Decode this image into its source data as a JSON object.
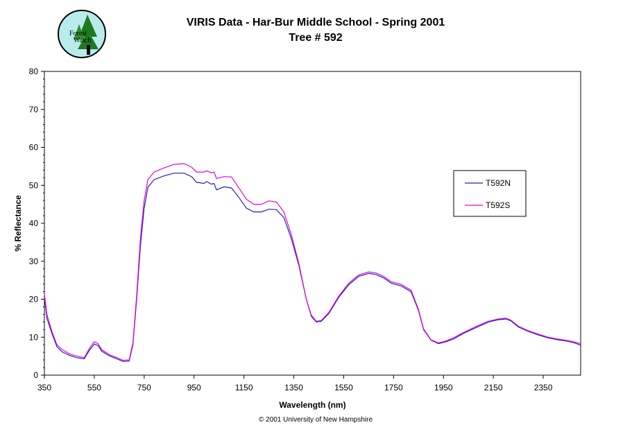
{
  "header": {
    "logo_text_line1": "Forest",
    "logo_text_line2": "Watch",
    "title": "VIRIS Data - Har-Bur Middle School - Spring 2001",
    "subtitle": "Tree # 592"
  },
  "footer": {
    "copyright": "© 2001 University of New Hampshire"
  },
  "colors": {
    "series_n": "#1f1fbf",
    "series_s": "#e000e0",
    "logo_bg": "#b8ecec",
    "logo_tree": "#1f7a1f"
  },
  "chart_data": {
    "type": "line",
    "title": "VIRIS Data - Har-Bur Middle School - Spring 2001",
    "subtitle": "Tree # 592",
    "xlabel": "Wavelength (nm)",
    "ylabel": "% Reflectance",
    "xlim": [
      350,
      2500
    ],
    "ylim": [
      0,
      80
    ],
    "x_ticks": [
      350,
      550,
      750,
      950,
      1150,
      1350,
      1550,
      1750,
      1950,
      2150,
      2350
    ],
    "y_ticks": [
      0,
      10,
      20,
      30,
      40,
      50,
      60,
      70,
      80
    ],
    "grid": false,
    "legend_position": "right",
    "series": [
      {
        "name": "T592N",
        "color": "#1f1fbf",
        "points": [
          [
            350,
            20.5
          ],
          [
            360,
            15
          ],
          [
            380,
            11
          ],
          [
            400,
            7.5
          ],
          [
            420,
            6.2
          ],
          [
            450,
            5.2
          ],
          [
            480,
            4.6
          ],
          [
            510,
            4.3
          ],
          [
            530,
            6.5
          ],
          [
            550,
            8.2
          ],
          [
            565,
            7.8
          ],
          [
            580,
            6.3
          ],
          [
            610,
            5.1
          ],
          [
            640,
            4.3
          ],
          [
            665,
            3.6
          ],
          [
            690,
            3.7
          ],
          [
            705,
            8
          ],
          [
            720,
            20
          ],
          [
            735,
            34
          ],
          [
            750,
            44
          ],
          [
            765,
            49.5
          ],
          [
            790,
            51.5
          ],
          [
            830,
            52.5
          ],
          [
            870,
            53.2
          ],
          [
            910,
            53.2
          ],
          [
            940,
            52.3
          ],
          [
            960,
            50.8
          ],
          [
            990,
            50.5
          ],
          [
            1000,
            51
          ],
          [
            1020,
            50.3
          ],
          [
            1030,
            50.5
          ],
          [
            1040,
            48.8
          ],
          [
            1070,
            49.6
          ],
          [
            1100,
            49.3
          ],
          [
            1130,
            46.8
          ],
          [
            1160,
            44
          ],
          [
            1190,
            43
          ],
          [
            1220,
            43
          ],
          [
            1250,
            43.7
          ],
          [
            1280,
            43.6
          ],
          [
            1310,
            41.5
          ],
          [
            1340,
            36
          ],
          [
            1370,
            29
          ],
          [
            1400,
            20
          ],
          [
            1420,
            15.5
          ],
          [
            1440,
            14
          ],
          [
            1460,
            14.2
          ],
          [
            1490,
            16.2
          ],
          [
            1530,
            20.5
          ],
          [
            1570,
            23.8
          ],
          [
            1610,
            26
          ],
          [
            1650,
            26.8
          ],
          [
            1680,
            26.5
          ],
          [
            1710,
            25.6
          ],
          [
            1740,
            24.2
          ],
          [
            1780,
            23.5
          ],
          [
            1820,
            22
          ],
          [
            1850,
            17
          ],
          [
            1870,
            12
          ],
          [
            1900,
            9.2
          ],
          [
            1930,
            8.3
          ],
          [
            1960,
            8.8
          ],
          [
            1990,
            9.5
          ],
          [
            2030,
            11
          ],
          [
            2080,
            12.5
          ],
          [
            2130,
            14
          ],
          [
            2170,
            14.6
          ],
          [
            2200,
            14.8
          ],
          [
            2220,
            14.3
          ],
          [
            2250,
            12.7
          ],
          [
            2290,
            11.5
          ],
          [
            2330,
            10.6
          ],
          [
            2370,
            9.8
          ],
          [
            2410,
            9.3
          ],
          [
            2440,
            9.0
          ],
          [
            2470,
            8.6
          ],
          [
            2500,
            7.9
          ]
        ]
      },
      {
        "name": "T592S",
        "color": "#e000e0",
        "points": [
          [
            350,
            21.5
          ],
          [
            360,
            16
          ],
          [
            380,
            11.5
          ],
          [
            400,
            8
          ],
          [
            420,
            6.8
          ],
          [
            450,
            5.6
          ],
          [
            480,
            5
          ],
          [
            510,
            4.6
          ],
          [
            530,
            7
          ],
          [
            550,
            8.8
          ],
          [
            565,
            8.3
          ],
          [
            580,
            6.7
          ],
          [
            610,
            5.4
          ],
          [
            640,
            4.6
          ],
          [
            665,
            3.9
          ],
          [
            690,
            4
          ],
          [
            705,
            8.5
          ],
          [
            720,
            21
          ],
          [
            735,
            36
          ],
          [
            750,
            46
          ],
          [
            765,
            51.5
          ],
          [
            790,
            53.5
          ],
          [
            830,
            54.6
          ],
          [
            870,
            55.5
          ],
          [
            910,
            55.7
          ],
          [
            940,
            54.8
          ],
          [
            960,
            53.5
          ],
          [
            990,
            53.5
          ],
          [
            1000,
            53.8
          ],
          [
            1020,
            53.3
          ],
          [
            1030,
            53.5
          ],
          [
            1040,
            51.8
          ],
          [
            1070,
            52.3
          ],
          [
            1100,
            52.2
          ],
          [
            1130,
            49.3
          ],
          [
            1160,
            46.3
          ],
          [
            1190,
            45
          ],
          [
            1220,
            45
          ],
          [
            1250,
            45.9
          ],
          [
            1280,
            45.6
          ],
          [
            1310,
            43
          ],
          [
            1340,
            37
          ],
          [
            1370,
            29.5
          ],
          [
            1400,
            20
          ],
          [
            1420,
            15.8
          ],
          [
            1440,
            14.2
          ],
          [
            1460,
            14.4
          ],
          [
            1490,
            16.5
          ],
          [
            1530,
            20.8
          ],
          [
            1570,
            24.2
          ],
          [
            1610,
            26.4
          ],
          [
            1650,
            27.2
          ],
          [
            1680,
            26.9
          ],
          [
            1710,
            26
          ],
          [
            1740,
            24.6
          ],
          [
            1780,
            23.9
          ],
          [
            1820,
            22.4
          ],
          [
            1850,
            17.3
          ],
          [
            1870,
            12.2
          ],
          [
            1900,
            9.3
          ],
          [
            1930,
            8.5
          ],
          [
            1960,
            9
          ],
          [
            1990,
            9.8
          ],
          [
            2030,
            11.2
          ],
          [
            2080,
            12.8
          ],
          [
            2130,
            14.2
          ],
          [
            2170,
            14.8
          ],
          [
            2200,
            15
          ],
          [
            2220,
            14.5
          ],
          [
            2250,
            12.9
          ],
          [
            2290,
            11.7
          ],
          [
            2330,
            10.8
          ],
          [
            2370,
            10
          ],
          [
            2410,
            9.5
          ],
          [
            2440,
            9.2
          ],
          [
            2470,
            8.8
          ],
          [
            2500,
            8.3
          ]
        ]
      }
    ]
  }
}
